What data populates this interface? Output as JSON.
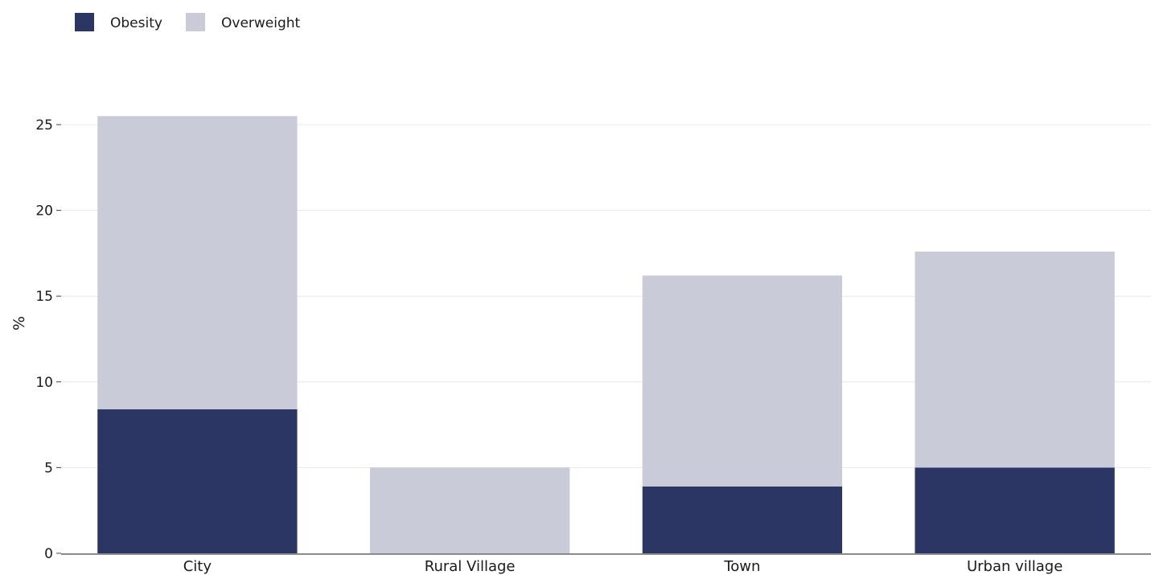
{
  "chart_data": {
    "type": "bar",
    "stacked": true,
    "categories": [
      "City",
      "Rural Village",
      "Town",
      "Urban village"
    ],
    "series": [
      {
        "name": "Obesity",
        "color": "#2b3664",
        "values": [
          8.4,
          0,
          3.9,
          5.0
        ]
      },
      {
        "name": "Overweight",
        "color": "#c9ccd8",
        "values": [
          17.1,
          5.0,
          12.3,
          12.6
        ]
      }
    ],
    "ylabel": "%",
    "xlabel": "",
    "ylim": [
      0,
      25
    ],
    "yticks": [
      0,
      5,
      10,
      15,
      20,
      25
    ],
    "grid": true,
    "legend_position": "top-left"
  }
}
